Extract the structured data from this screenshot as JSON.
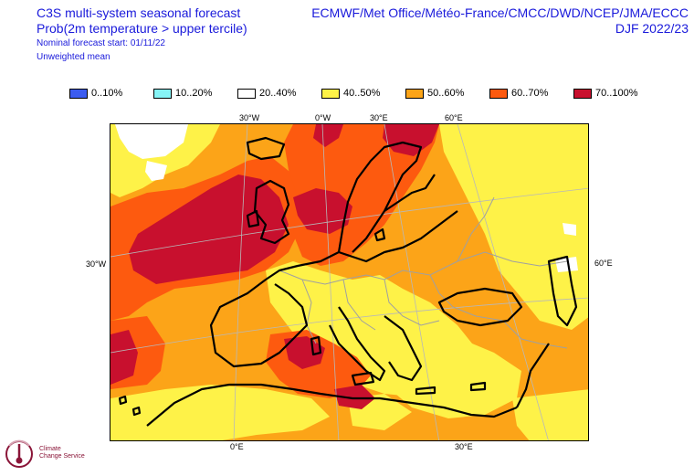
{
  "header": {
    "title": "C3S multi-system seasonal forecast",
    "subtitle": "Prob(2m temperature > upper tercile)",
    "start": "Nominal forecast start: 01/11/22",
    "mean": "Unweighted mean",
    "systems": "ECMWF/Met Office/Météo-France/CMCC/DWD/NCEP/JMA/ECCC",
    "season": "DJF 2022/23"
  },
  "legend": [
    {
      "label": "0..10%",
      "color": "#3c5cf0"
    },
    {
      "label": "10..20%",
      "color": "#86f4f6"
    },
    {
      "label": "20..40%",
      "color": "#ffffff"
    },
    {
      "label": "40..50%",
      "color": "#fef248"
    },
    {
      "label": "50..60%",
      "color": "#fca418"
    },
    {
      "label": "60..70%",
      "color": "#fd5a0f"
    },
    {
      "label": "70..100%",
      "color": "#c8102e"
    }
  ],
  "axes": {
    "top_left": "30°W",
    "top_mid": "0°W",
    "top_right1": "30°E",
    "top_right2": "60°E",
    "left": "30°W",
    "right": "60°E",
    "bottom_left": "0°E",
    "bottom_right": "30°E"
  },
  "logo": {
    "name1": "Climate",
    "name2": "Change Service"
  }
}
